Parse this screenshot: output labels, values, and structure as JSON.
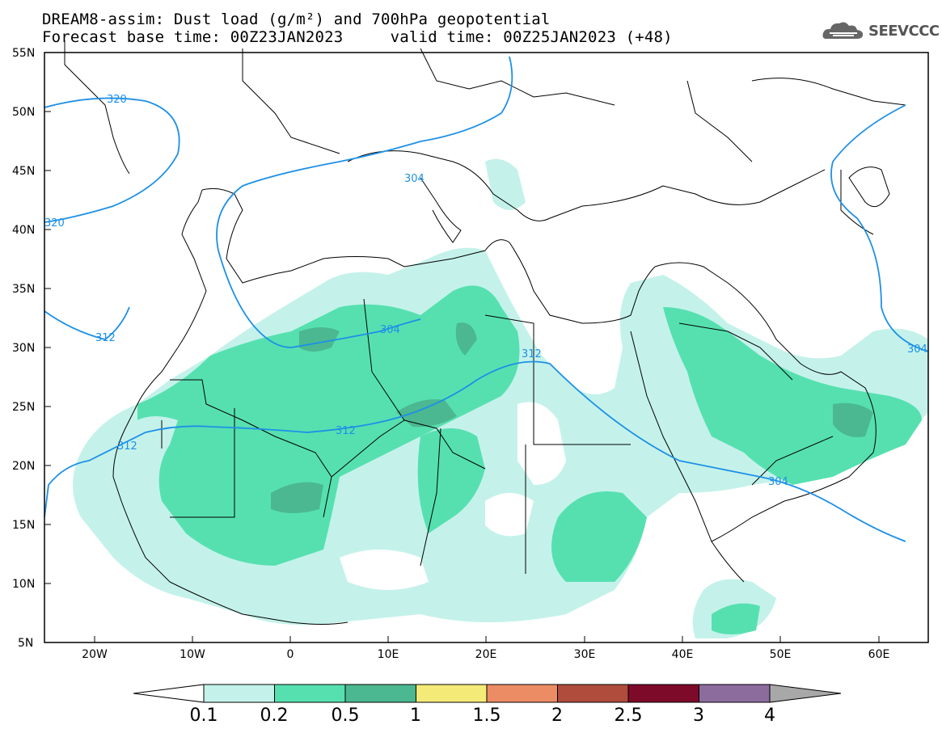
{
  "header": {
    "title_line1": "DREAM8-assim: Dust load (g/m²) and 700hPa geopotential",
    "title_line2": "Forecast base time: 00Z23JAN2023     valid time: 00Z25JAN2023 (+48)",
    "logo_text": "SEEVCCC"
  },
  "map": {
    "lat_labels": [
      "55N",
      "50N",
      "45N",
      "40N",
      "35N",
      "30N",
      "25N",
      "20N",
      "15N",
      "10N",
      "5N"
    ],
    "lon_labels": [
      "20W",
      "10W",
      "0",
      "10E",
      "20E",
      "30E",
      "40E",
      "50E",
      "60E"
    ],
    "contour_labels": [
      "320",
      "320",
      "304",
      "312",
      "304",
      "312",
      "312",
      "312",
      "304"
    ],
    "colors": {
      "contour": "#1e90e6",
      "border": "#000000",
      "dust_0_1": "#c4f2ea",
      "dust_0_2": "#56e0b0",
      "dust_0_5": "#4bb891",
      "dust_1": "#f4ea78",
      "dust_1_5": "#ec8c64",
      "dust_2": "#b04c3c",
      "dust_2_5": "#7e0a2a",
      "dust_3": "#8c6c9c",
      "dust_4": "#a8a8a8"
    }
  },
  "colorbar": {
    "labels": [
      "0.1",
      "0.2",
      "0.5",
      "1",
      "1.5",
      "2",
      "2.5",
      "3",
      "4"
    ],
    "colors": [
      "#c4f2ea",
      "#56e0b0",
      "#4bb891",
      "#f4ea78",
      "#ec8c64",
      "#b04c3c",
      "#7e0a2a",
      "#8c6c9c"
    ]
  }
}
